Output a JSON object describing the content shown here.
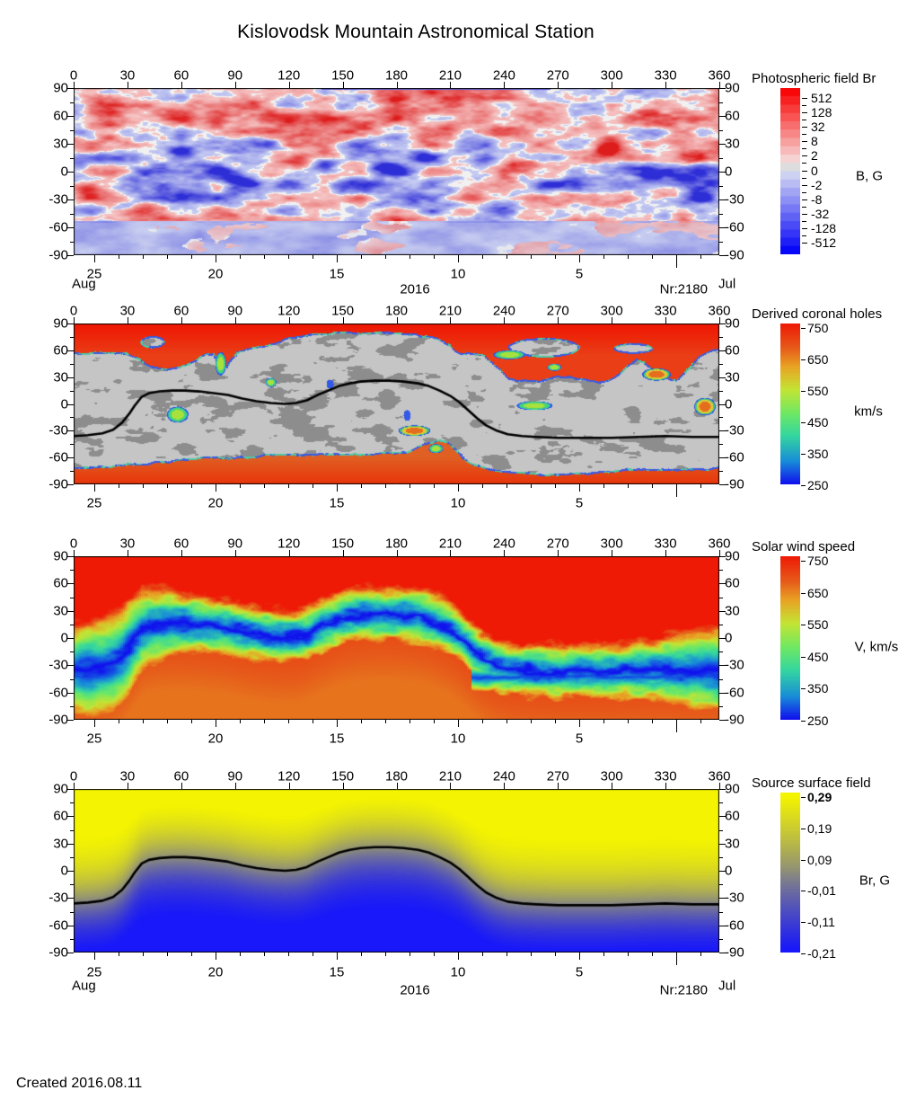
{
  "title": "Kislovodsk Mountain Astronomical Station",
  "created_label": "Created  2016.08.11",
  "axes": {
    "lon_tick_labels": [
      "0",
      "30",
      "60",
      "90",
      "120",
      "150",
      "180",
      "210",
      "240",
      "270",
      "300",
      "330",
      "360"
    ],
    "lat_tick_labels": [
      "90",
      "60",
      "30",
      "0",
      "-30",
      "-60",
      "-90"
    ],
    "day_tick_labels": [
      "25",
      "20",
      "15",
      "10",
      "5"
    ],
    "month_left": "Aug",
    "month_right": "Jul",
    "year": "2016",
    "rotation_number": "Nr:2180"
  },
  "panels": [
    {
      "title": "Photospheric field Br",
      "unit": "B, G",
      "colorbar_ticks": [
        "512",
        "128",
        "32",
        "8",
        "2",
        "0",
        "-2",
        "-8",
        "-32",
        "-128",
        "-512"
      ]
    },
    {
      "title": "Derived coronal holes",
      "unit": "km/s",
      "colorbar_ticks": [
        "750",
        "650",
        "550",
        "450",
        "350",
        "250"
      ]
    },
    {
      "title": "Solar wind speed",
      "unit": "V, km/s",
      "colorbar_ticks": [
        "750",
        "650",
        "550",
        "450",
        "350",
        "250"
      ]
    },
    {
      "title": "Source surface field",
      "unit": "Br, G",
      "colorbar_ticks": [
        "0,29",
        "0,19",
        "0,09",
        "-0,01",
        "-0,11",
        "-0,21"
      ],
      "first_tick_bold": true
    }
  ],
  "chart_data": {
    "type": "heatmap",
    "subtype": "solar-synoptic-maps",
    "station": "Kislovodsk Mountain Astronomical Station",
    "carrington_rotation": "Nr:2180",
    "created": "2016.08.11",
    "lon_axis": {
      "range": [
        0,
        360
      ],
      "tick_step": 30
    },
    "lat_axis": {
      "range": [
        -90,
        90
      ],
      "tick_step": 30,
      "minor_step": 15
    },
    "date_axis": {
      "year": "2016",
      "left_month": "Aug",
      "right_month": "Jul",
      "day_ticks": [
        25,
        20,
        15,
        10,
        5
      ],
      "month_boundary_day": 1
    },
    "neutral_line": [
      [
        0,
        -36
      ],
      [
        8,
        -35
      ],
      [
        16,
        -33
      ],
      [
        22,
        -29
      ],
      [
        27,
        -21
      ],
      [
        31,
        -11
      ],
      [
        34,
        -2
      ],
      [
        38,
        8
      ],
      [
        42,
        12
      ],
      [
        48,
        14
      ],
      [
        55,
        15
      ],
      [
        62,
        15
      ],
      [
        70,
        14
      ],
      [
        78,
        12
      ],
      [
        86,
        10
      ],
      [
        94,
        6
      ],
      [
        102,
        3
      ],
      [
        110,
        1
      ],
      [
        118,
        0
      ],
      [
        124,
        1
      ],
      [
        130,
        4
      ],
      [
        136,
        10
      ],
      [
        142,
        15
      ],
      [
        148,
        20
      ],
      [
        154,
        23
      ],
      [
        160,
        25
      ],
      [
        168,
        26
      ],
      [
        176,
        26
      ],
      [
        184,
        25
      ],
      [
        192,
        23
      ],
      [
        198,
        20
      ],
      [
        204,
        15
      ],
      [
        210,
        9
      ],
      [
        215,
        2
      ],
      [
        220,
        -7
      ],
      [
        225,
        -16
      ],
      [
        230,
        -24
      ],
      [
        236,
        -30
      ],
      [
        242,
        -34
      ],
      [
        250,
        -36
      ],
      [
        258,
        -37
      ],
      [
        270,
        -38
      ],
      [
        285,
        -38
      ],
      [
        300,
        -38
      ],
      [
        315,
        -37
      ],
      [
        330,
        -36
      ],
      [
        345,
        -37
      ],
      [
        360,
        -37
      ]
    ],
    "panels": [
      {
        "name": "Photospheric field Br",
        "unit": "G",
        "colorbar": {
          "scale": "symmetric-log",
          "tick_values": [
            512,
            128,
            32,
            8,
            2,
            0,
            -2,
            -8,
            -32,
            -128,
            -512
          ],
          "positive_color": "#f80808",
          "zero_color": "#dddddd",
          "negative_color": "#0808f8"
        },
        "description": "Synoptic magnetogram: red = positive Br, blue = negative Br, white contours at polarity boundaries",
        "mixed_polarity_band_lat": [
          -55,
          40
        ],
        "north_polar_cap": "weak positive (pale red)",
        "south_polar_cap": "weak negative (pale blue)",
        "strong_positive_regions": [
          [
            123,
            13
          ],
          [
            163,
            11
          ],
          [
            250,
            8
          ],
          [
            8,
            -20
          ],
          [
            330,
            -22
          ],
          [
            298,
            22
          ],
          [
            345,
            15
          ]
        ],
        "strong_negative_regions": [
          [
            140,
            8
          ],
          [
            170,
            6
          ],
          [
            196,
            16
          ],
          [
            227,
            12
          ],
          [
            60,
            22
          ],
          [
            93,
            -10
          ],
          [
            265,
            -14
          ],
          [
            351,
            -28
          ],
          [
            110,
            30
          ]
        ]
      },
      {
        "name": "Derived coronal holes",
        "unit": "km/s",
        "colorbar": {
          "range": [
            250,
            750
          ],
          "tick_values": [
            750,
            650,
            550,
            450,
            350,
            250
          ]
        },
        "description": "Red = open-field coronal holes (polar caps), gray = closed-field regions with darker substructure, green/orange spots = low-latitude holes",
        "gray_top_boundary": [
          [
            0,
            57
          ],
          [
            18,
            58
          ],
          [
            30,
            57
          ],
          [
            36,
            52
          ],
          [
            40,
            45
          ],
          [
            46,
            41
          ],
          [
            52,
            40
          ],
          [
            58,
            42
          ],
          [
            64,
            46
          ],
          [
            70,
            52
          ],
          [
            74,
            56
          ],
          [
            78,
            57
          ],
          [
            81,
            45
          ],
          [
            84,
            40
          ],
          [
            87,
            50
          ],
          [
            91,
            58
          ],
          [
            96,
            61
          ],
          [
            103,
            64
          ],
          [
            110,
            68
          ],
          [
            118,
            73
          ],
          [
            126,
            76
          ],
          [
            136,
            79
          ],
          [
            148,
            80
          ],
          [
            162,
            80
          ],
          [
            176,
            80
          ],
          [
            190,
            78
          ],
          [
            200,
            75
          ],
          [
            206,
            71
          ],
          [
            210,
            66
          ],
          [
            213,
            60
          ],
          [
            217,
            57
          ],
          [
            224,
            57
          ],
          [
            229,
            55
          ],
          [
            234,
            47
          ],
          [
            238,
            38
          ],
          [
            242,
            31
          ],
          [
            247,
            28
          ],
          [
            253,
            26
          ],
          [
            259,
            26
          ],
          [
            264,
            28
          ],
          [
            269,
            31
          ],
          [
            275,
            31
          ],
          [
            281,
            29
          ],
          [
            287,
            27
          ],
          [
            293,
            26
          ],
          [
            299,
            27
          ],
          [
            304,
            33
          ],
          [
            309,
            43
          ],
          [
            314,
            50
          ],
          [
            318,
            47
          ],
          [
            324,
            38
          ],
          [
            330,
            30
          ],
          [
            336,
            27
          ],
          [
            342,
            38
          ],
          [
            348,
            53
          ],
          [
            354,
            59
          ],
          [
            360,
            61
          ]
        ],
        "gray_bottom_boundary": [
          [
            0,
            -72
          ],
          [
            20,
            -71
          ],
          [
            35,
            -69
          ],
          [
            50,
            -66
          ],
          [
            65,
            -63
          ],
          [
            80,
            -61
          ],
          [
            100,
            -60
          ],
          [
            120,
            -59
          ],
          [
            145,
            -58
          ],
          [
            170,
            -57
          ],
          [
            186,
            -55
          ],
          [
            193,
            -49
          ],
          [
            199,
            -44
          ],
          [
            204,
            -42
          ],
          [
            209,
            -45
          ],
          [
            213,
            -52
          ],
          [
            217,
            -62
          ],
          [
            223,
            -70
          ],
          [
            232,
            -75
          ],
          [
            245,
            -78
          ],
          [
            260,
            -80
          ],
          [
            275,
            -80
          ],
          [
            290,
            -78
          ],
          [
            310,
            -76
          ],
          [
            330,
            -75
          ],
          [
            350,
            -74
          ],
          [
            360,
            -73
          ]
        ],
        "gray_islands": [
          [
            44,
            69,
            7,
            7
          ],
          [
            262,
            63,
            20,
            11
          ],
          [
            312,
            62,
            11,
            6
          ]
        ],
        "features": [
          [
            82,
            45,
            3,
            13,
            "green"
          ],
          [
            110,
            24,
            3,
            5,
            "green"
          ],
          [
            58,
            -12,
            6,
            9,
            "green"
          ],
          [
            190,
            -30,
            9,
            6,
            "orange"
          ],
          [
            202,
            -50,
            4,
            5,
            "green"
          ],
          [
            243,
            55,
            9,
            5,
            "green"
          ],
          [
            257,
            -2,
            10,
            5,
            "green"
          ],
          [
            268,
            41,
            4,
            4,
            "green"
          ],
          [
            325,
            33,
            8,
            7,
            "orange"
          ],
          [
            352,
            -3,
            6,
            10,
            "orange"
          ],
          [
            143,
            22,
            2,
            5,
            "blue"
          ],
          [
            186,
            -13,
            2,
            6,
            "blue"
          ]
        ]
      },
      {
        "name": "Solar wind speed",
        "unit": "V, km/s",
        "colorbar": {
          "range": [
            250,
            750
          ],
          "tick_values": [
            750,
            650,
            550,
            450,
            350,
            250
          ]
        },
        "description": "Fast wind (red, ~750 km/s) at poles, slow wind band (green-blue, 250-450 km/s) snaking along the neutral line",
        "slow_band_half_width_deg": 30,
        "south_slow_band": {
          "lat": -43,
          "lon_range": [
            225,
            365
          ]
        }
      },
      {
        "name": "Source surface field",
        "unit": "Br, G",
        "colorbar": {
          "range": [
            -0.21,
            0.29
          ],
          "tick_values": [
            0.29,
            0.19,
            0.09,
            -0.01,
            -0.11,
            -0.21
          ]
        },
        "description": "Smooth dipolar field at source surface: yellow = positive north of neutral line, blue = negative south of it, black neutral line"
      }
    ]
  }
}
